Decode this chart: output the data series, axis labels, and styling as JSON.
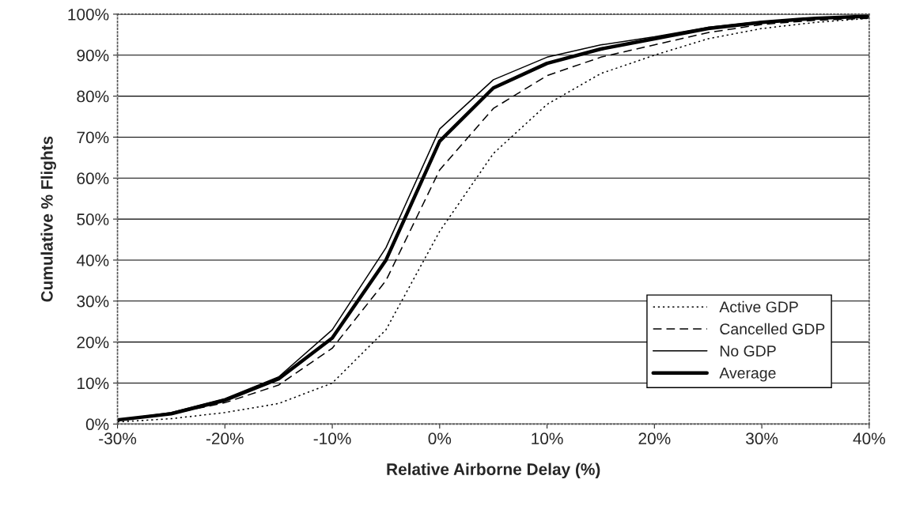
{
  "chart_data": {
    "type": "line",
    "xlabel": "Relative Airborne Delay (%)",
    "ylabel": "Cumulative % Flights",
    "x": [
      -30,
      -25,
      -20,
      -15,
      -10,
      -5,
      0,
      5,
      10,
      15,
      20,
      25,
      30,
      35,
      40
    ],
    "series": [
      {
        "name": "Active GDP",
        "color": "#000000",
        "line_style": "dotted",
        "values": [
          0.5,
          1.3,
          2.8,
          5,
          10,
          23,
          47,
          66,
          78,
          85.5,
          90,
          94,
          96.5,
          98,
          99
        ]
      },
      {
        "name": "Cancelled GDP",
        "color": "#000000",
        "line_style": "dashed",
        "values": [
          1,
          2.5,
          5.2,
          9.5,
          18.5,
          35,
          62,
          77,
          85,
          89.5,
          92.5,
          95.5,
          97.5,
          98.5,
          99
        ]
      },
      {
        "name": "No GDP",
        "color": "#000000",
        "line_style": "solid",
        "values": [
          1,
          2.8,
          6.2,
          11.5,
          23,
          43,
          72,
          84,
          89.5,
          92.5,
          94.5,
          96.8,
          98.2,
          99,
          99.5
        ]
      },
      {
        "name": "Average",
        "color": "#000000",
        "line_style": "solid",
        "values": [
          1,
          2.5,
          5.8,
          11,
          21,
          40,
          69,
          82,
          88,
          91.5,
          94,
          96.5,
          98,
          99,
          99.5
        ]
      }
    ],
    "xlim": [
      -30,
      40
    ],
    "xticks": [
      {
        "value": -30,
        "label": "-30%"
      },
      {
        "value": -20,
        "label": "-20%"
      },
      {
        "value": -10,
        "label": "-10%"
      },
      {
        "value": 0,
        "label": "0%"
      },
      {
        "value": 10,
        "label": "10%"
      },
      {
        "value": 20,
        "label": "20%"
      },
      {
        "value": 30,
        "label": "30%"
      },
      {
        "value": 40,
        "label": "40%"
      }
    ],
    "ylim": [
      0,
      100
    ],
    "yticks": [
      {
        "value": 0,
        "label": "0%"
      },
      {
        "value": 10,
        "label": "10%"
      },
      {
        "value": 20,
        "label": "20%"
      },
      {
        "value": 30,
        "label": "30%"
      },
      {
        "value": 40,
        "label": "40%"
      },
      {
        "value": 50,
        "label": "50%"
      },
      {
        "value": 60,
        "label": "60%"
      },
      {
        "value": 70,
        "label": "70%"
      },
      {
        "value": 80,
        "label": "80%"
      },
      {
        "value": 90,
        "label": "90%"
      },
      {
        "value": 100,
        "label": "100%"
      }
    ],
    "grid": "y",
    "legend": "bottom right",
    "marker": "none"
  }
}
